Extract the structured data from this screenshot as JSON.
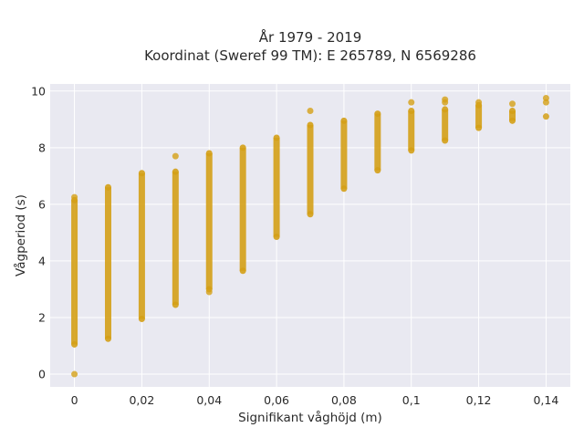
{
  "chart_data": {
    "type": "scatter",
    "title_line1": "År 1979 - 2019",
    "title_line2": "Koordinat (Sweref 99 TM): E 265789, N 6569286",
    "xlabel": "Signifikant våghöjd (m)",
    "ylabel": "Vågperiod (s)",
    "xlim": [
      -0.0072,
      0.1472
    ],
    "ylim": [
      -0.45,
      10.25
    ],
    "x_ticks": [
      0,
      0.02,
      0.04,
      0.06,
      0.08,
      0.1,
      0.12,
      0.14
    ],
    "x_tick_labels": [
      "0",
      "0,02",
      "0,04",
      "0,06",
      "0,08",
      "0,1",
      "0,12",
      "0,14"
    ],
    "y_ticks": [
      0,
      2,
      4,
      6,
      8,
      10
    ],
    "y_tick_labels": [
      "0",
      "2",
      "4",
      "6",
      "8",
      "10"
    ],
    "grid": true,
    "colors": {
      "point": "#d4a017",
      "plot_bg": "#e9e9f1",
      "grid": "#ffffff"
    },
    "columns": [
      {
        "x": 0.0,
        "ymin": 1.05,
        "ymax": 6.15,
        "outliers": [
          0.0,
          6.25
        ]
      },
      {
        "x": 0.01,
        "ymin": 1.25,
        "ymax": 6.6,
        "outliers": []
      },
      {
        "x": 0.02,
        "ymin": 1.95,
        "ymax": 7.1,
        "outliers": []
      },
      {
        "x": 0.03,
        "ymin": 2.45,
        "ymax": 7.15,
        "outliers": [
          7.7
        ]
      },
      {
        "x": 0.04,
        "ymin": 3.0,
        "ymax": 7.8,
        "outliers": [
          2.9
        ]
      },
      {
        "x": 0.05,
        "ymin": 3.65,
        "ymax": 8.0,
        "outliers": []
      },
      {
        "x": 0.06,
        "ymin": 4.85,
        "ymax": 8.35,
        "outliers": []
      },
      {
        "x": 0.07,
        "ymin": 5.65,
        "ymax": 8.8,
        "outliers": [
          9.3
        ]
      },
      {
        "x": 0.08,
        "ymin": 6.55,
        "ymax": 8.95,
        "outliers": []
      },
      {
        "x": 0.09,
        "ymin": 7.2,
        "ymax": 9.2,
        "outliers": []
      },
      {
        "x": 0.1,
        "ymin": 7.9,
        "ymax": 9.3,
        "outliers": [
          9.6
        ]
      },
      {
        "x": 0.11,
        "ymin": 8.25,
        "ymax": 9.35,
        "outliers": [
          9.6,
          9.7
        ]
      },
      {
        "x": 0.12,
        "ymin": 8.7,
        "ymax": 9.5,
        "outliers": [
          9.6
        ]
      },
      {
        "x": 0.13,
        "ymin": 8.95,
        "ymax": 9.3,
        "outliers": [
          9.55
        ]
      },
      {
        "x": 0.14,
        "ymin": 9.1,
        "ymax": 9.1,
        "outliers": [
          9.6,
          9.75
        ]
      }
    ]
  }
}
